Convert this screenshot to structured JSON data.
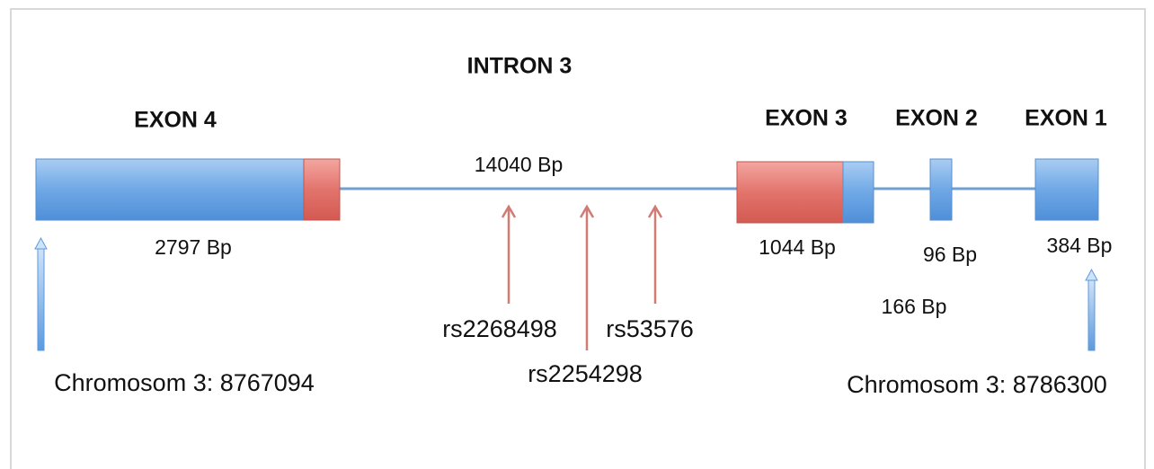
{
  "intron": {
    "label": "INTRON 3",
    "size": "14040 Bp"
  },
  "exons": [
    {
      "label": "EXON 4",
      "size": "2797 Bp"
    },
    {
      "label": "EXON 3",
      "size": "1044 Bp"
    },
    {
      "label": "EXON 2",
      "size": "96 Bp"
    },
    {
      "label": "EXON 1",
      "size": "384 Bp"
    }
  ],
  "small_intron_size": "166 Bp",
  "snps": [
    "rs2268498",
    "rs2254298",
    "rs53576"
  ],
  "positions": {
    "start": "Chromosom 3: 8767094",
    "end": "Chromosom 3: 8786300"
  }
}
